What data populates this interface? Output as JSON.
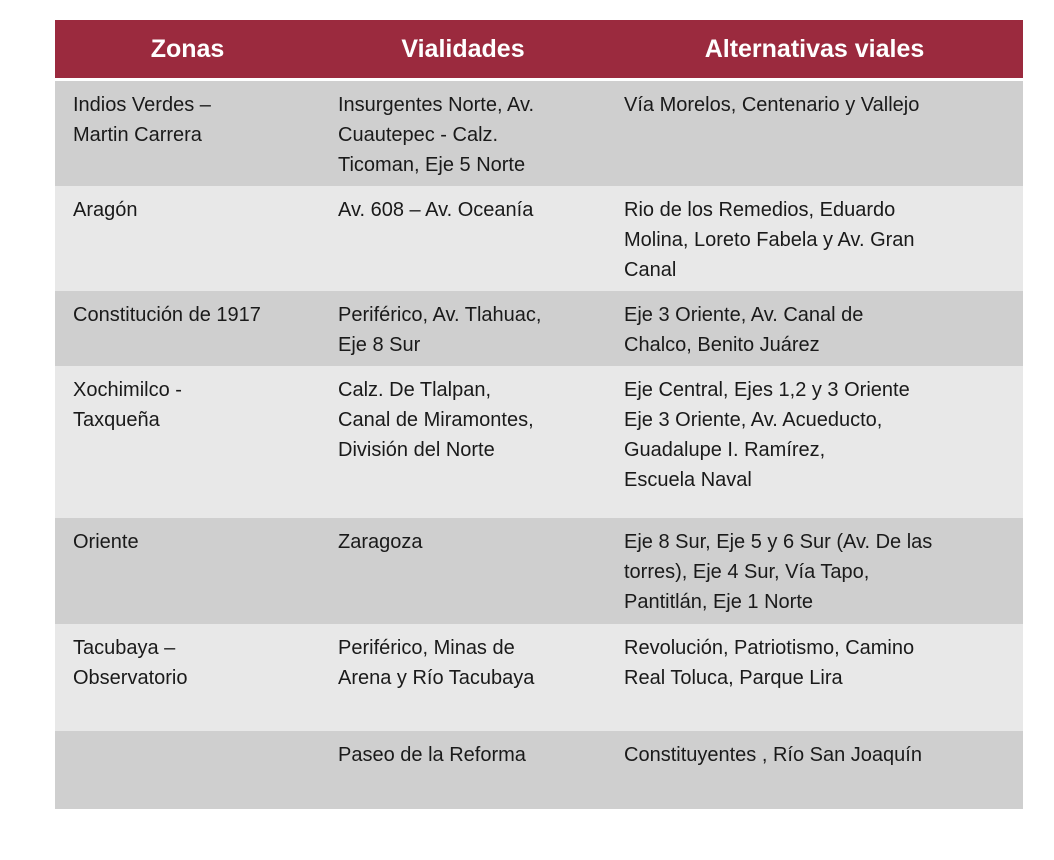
{
  "table": {
    "headers": [
      "Zonas",
      "Vialidades",
      "Alternativas viales"
    ],
    "header_color": "#9b2a3e",
    "rows": [
      {
        "zona": [
          "Indios Verdes –",
          "Martin Carrera"
        ],
        "vialidades": [
          "Insurgentes Norte, Av.",
          "Cuautepec - Calz.",
          "Ticoman, Eje 5 Norte"
        ],
        "alternativas": [
          "Vía Morelos, Centenario y Vallejo"
        ]
      },
      {
        "zona": [
          "Aragón"
        ],
        "vialidades": [
          "Av. 608 – Av. Oceanía"
        ],
        "alternativas": [
          "Rio de los Remedios, Eduardo",
          "Molina, Loreto Fabela y Av. Gran",
          "Canal"
        ]
      },
      {
        "zona": [
          "Constitución de 1917"
        ],
        "vialidades": [
          "Periférico, Av. Tlahuac,",
          "Eje 8 Sur"
        ],
        "alternativas": [
          "Eje 3 Oriente, Av. Canal de",
          "Chalco, Benito Juárez"
        ]
      },
      {
        "zona": [
          "Xochimilco -",
          "Taxqueña"
        ],
        "vialidades": [
          "Calz. De Tlalpan,",
          "Canal de Miramontes,",
          "División del Norte"
        ],
        "alternativas": [
          "Eje Central, Ejes 1,2 y 3 Oriente",
          "Eje 3 Oriente, Av. Acueducto,",
          "Guadalupe I. Ramírez,",
          "Escuela Naval"
        ]
      },
      {
        "zona": [
          "Oriente"
        ],
        "vialidades": [
          "Zaragoza"
        ],
        "alternativas": [
          "Eje 8 Sur, Eje 5 y 6 Sur (Av. De las",
          "torres), Eje 4 Sur, Vía Tapo,",
          "Pantitlán, Eje 1 Norte"
        ]
      },
      {
        "zona": [
          "Tacubaya –",
          "Observatorio"
        ],
        "vialidades": [
          "Periférico, Minas de",
          "Arena y Río Tacubaya"
        ],
        "alternativas": [
          "Revolución, Patriotismo, Camino",
          "Real Toluca, Parque Lira"
        ]
      },
      {
        "zona": [
          ""
        ],
        "vialidades": [
          "Paseo de la Reforma"
        ],
        "alternativas": [
          "Constituyentes , Río San Joaquín"
        ]
      }
    ]
  }
}
